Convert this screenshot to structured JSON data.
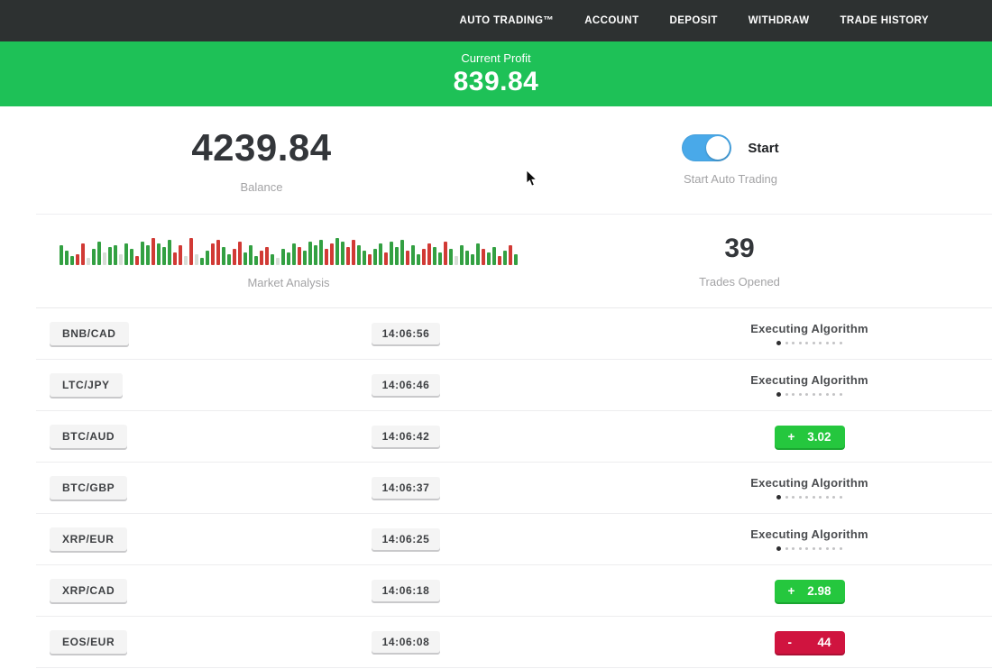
{
  "nav": {
    "items": [
      "AUTO TRADING™",
      "ACCOUNT",
      "DEPOSIT",
      "WITHDRAW",
      "TRADE HISTORY"
    ]
  },
  "profit_banner": {
    "label": "Current Profit",
    "value": "839.84",
    "color": "#1ec157"
  },
  "stats": {
    "balance": {
      "value": "4239.84",
      "label": "Balance"
    },
    "auto_trading": {
      "toggle_label": "Start",
      "label": "Start Auto Trading",
      "enabled": true,
      "toggle_color": "#49a9e9"
    },
    "market_analysis": {
      "label": "Market Analysis"
    },
    "trades_opened": {
      "value": "39",
      "label": "Trades Opened"
    }
  },
  "chart_data": {
    "type": "bar",
    "title": "Market Analysis",
    "description": "decorative mini candlestick-style activity strip, green/red/neutral bars, bottom-aligned",
    "colors": {
      "g": "#33a042",
      "r": "#d13a35",
      "n": "#d7ddd6"
    },
    "bars": [
      [
        22,
        "g"
      ],
      [
        16,
        "g"
      ],
      [
        10,
        "g"
      ],
      [
        12,
        "r"
      ],
      [
        24,
        "r"
      ],
      [
        8,
        "n"
      ],
      [
        18,
        "g"
      ],
      [
        26,
        "g"
      ],
      [
        14,
        "n"
      ],
      [
        20,
        "g"
      ],
      [
        22,
        "g"
      ],
      [
        12,
        "n"
      ],
      [
        24,
        "g"
      ],
      [
        18,
        "g"
      ],
      [
        10,
        "r"
      ],
      [
        26,
        "g"
      ],
      [
        22,
        "g"
      ],
      [
        30,
        "r"
      ],
      [
        24,
        "g"
      ],
      [
        20,
        "g"
      ],
      [
        28,
        "g"
      ],
      [
        14,
        "r"
      ],
      [
        22,
        "r"
      ],
      [
        10,
        "n"
      ],
      [
        30,
        "r"
      ],
      [
        12,
        "n"
      ],
      [
        8,
        "g"
      ],
      [
        16,
        "g"
      ],
      [
        24,
        "r"
      ],
      [
        28,
        "r"
      ],
      [
        20,
        "g"
      ],
      [
        12,
        "g"
      ],
      [
        18,
        "r"
      ],
      [
        26,
        "r"
      ],
      [
        14,
        "g"
      ],
      [
        22,
        "g"
      ],
      [
        10,
        "g"
      ],
      [
        16,
        "r"
      ],
      [
        20,
        "r"
      ],
      [
        12,
        "g"
      ],
      [
        8,
        "n"
      ],
      [
        18,
        "g"
      ],
      [
        14,
        "g"
      ],
      [
        24,
        "g"
      ],
      [
        20,
        "r"
      ],
      [
        16,
        "g"
      ],
      [
        26,
        "g"
      ],
      [
        22,
        "g"
      ],
      [
        28,
        "g"
      ],
      [
        18,
        "r"
      ],
      [
        24,
        "r"
      ],
      [
        30,
        "g"
      ],
      [
        26,
        "g"
      ],
      [
        20,
        "r"
      ],
      [
        28,
        "r"
      ],
      [
        22,
        "g"
      ],
      [
        16,
        "g"
      ],
      [
        12,
        "r"
      ],
      [
        18,
        "g"
      ],
      [
        24,
        "g"
      ],
      [
        14,
        "r"
      ],
      [
        26,
        "g"
      ],
      [
        20,
        "g"
      ],
      [
        28,
        "g"
      ],
      [
        16,
        "r"
      ],
      [
        22,
        "g"
      ],
      [
        12,
        "g"
      ],
      [
        18,
        "r"
      ],
      [
        24,
        "r"
      ],
      [
        20,
        "g"
      ],
      [
        14,
        "g"
      ],
      [
        26,
        "r"
      ],
      [
        18,
        "g"
      ],
      [
        10,
        "n"
      ],
      [
        22,
        "g"
      ],
      [
        16,
        "g"
      ],
      [
        12,
        "g"
      ],
      [
        24,
        "g"
      ],
      [
        18,
        "r"
      ],
      [
        14,
        "g"
      ],
      [
        20,
        "g"
      ],
      [
        10,
        "r"
      ],
      [
        16,
        "g"
      ],
      [
        22,
        "r"
      ],
      [
        12,
        "g"
      ]
    ]
  },
  "trades_table": {
    "executing_dots": 10,
    "rows": [
      {
        "pair": "BNB/CAD",
        "time": "14:06:56",
        "status": "executing",
        "status_label": "Executing Algorithm"
      },
      {
        "pair": "LTC/JPY",
        "time": "14:06:46",
        "status": "executing",
        "status_label": "Executing Algorithm"
      },
      {
        "pair": "BTC/AUD",
        "time": "14:06:42",
        "status": "profit",
        "result_sign": "+",
        "result_value": "3.02"
      },
      {
        "pair": "BTC/GBP",
        "time": "14:06:37",
        "status": "executing",
        "status_label": "Executing Algorithm"
      },
      {
        "pair": "XRP/EUR",
        "time": "14:06:25",
        "status": "executing",
        "status_label": "Executing Algorithm"
      },
      {
        "pair": "XRP/CAD",
        "time": "14:06:18",
        "status": "profit",
        "result_sign": "+",
        "result_value": "2.98"
      },
      {
        "pair": "EOS/EUR",
        "time": "14:06:08",
        "status": "loss",
        "result_sign": "-",
        "result_value": "44"
      }
    ],
    "status_colors": {
      "profit": "#25c73e",
      "loss": "#d0143f"
    }
  }
}
